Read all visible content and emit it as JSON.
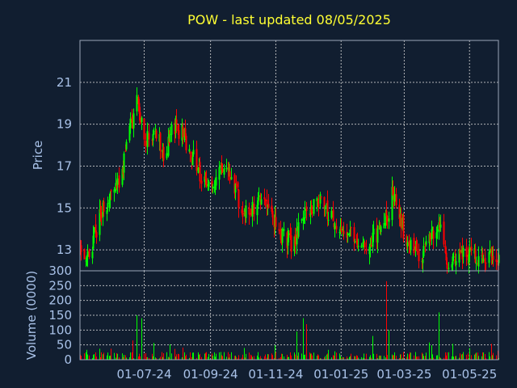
{
  "chart_data": {
    "type": "candlestick",
    "title": "POW - last updated 08/05/2025",
    "colors": {
      "up": "#00ff00",
      "down": "#ff0000",
      "background": "#111e30",
      "text": "#a9c2e8",
      "title": "#ffff33"
    },
    "grid": true,
    "price_panel": {
      "ylabel": "Price",
      "ylim": [
        12.0,
        23.0
      ],
      "yticks": [
        13,
        15,
        17,
        19,
        21
      ],
      "lowest_tick_label": "300"
    },
    "volume_panel": {
      "ylabel": "Volume (0000)",
      "ylim": [
        0,
        300
      ],
      "yticks": [
        0,
        50,
        100,
        150,
        200,
        250,
        300
      ],
      "tick_labels": [
        "0",
        "50",
        "100",
        "150",
        "200",
        "250",
        ""
      ]
    },
    "x": {
      "start": "2024-05-02",
      "end": "2025-05-28",
      "ticks": [
        {
          "date": "2024-07-01",
          "label": "01-07-24"
        },
        {
          "date": "2024-09-01",
          "label": "01-09-24"
        },
        {
          "date": "2024-11-01",
          "label": "01-11-24"
        },
        {
          "date": "2025-01-01",
          "label": "01-01-25"
        },
        {
          "date": "2025-03-01",
          "label": "01-03-25"
        },
        {
          "date": "2025-05-01",
          "label": "01-05-25"
        }
      ]
    },
    "close_anchors": [
      [
        "2024-05-02",
        13.2
      ],
      [
        "2024-05-10",
        12.7
      ],
      [
        "2024-05-20",
        14.6
      ],
      [
        "2024-05-30",
        15.6
      ],
      [
        "2024-06-08",
        16.2
      ],
      [
        "2024-06-16",
        18.5
      ],
      [
        "2024-06-24",
        20.0
      ],
      [
        "2024-07-02",
        18.3
      ],
      [
        "2024-07-10",
        18.6
      ],
      [
        "2024-07-20",
        17.6
      ],
      [
        "2024-07-28",
        19.0
      ],
      [
        "2024-08-05",
        18.6
      ],
      [
        "2024-08-15",
        17.5
      ],
      [
        "2024-08-25",
        16.2
      ],
      [
        "2024-09-03",
        16.4
      ],
      [
        "2024-09-12",
        16.9
      ],
      [
        "2024-09-22",
        16.2
      ],
      [
        "2024-10-02",
        14.6
      ],
      [
        "2024-10-10",
        15.0
      ],
      [
        "2024-10-20",
        15.6
      ],
      [
        "2024-10-30",
        14.3
      ],
      [
        "2024-11-08",
        13.6
      ],
      [
        "2024-11-16",
        13.2
      ],
      [
        "2024-11-22",
        14.0
      ],
      [
        "2024-12-02",
        15.0
      ],
      [
        "2024-12-12",
        15.3
      ],
      [
        "2024-12-22",
        14.7
      ],
      [
        "2025-01-02",
        13.8
      ],
      [
        "2025-01-12",
        13.9
      ],
      [
        "2025-01-22",
        13.0
      ],
      [
        "2025-01-30",
        13.6
      ],
      [
        "2025-02-10",
        14.1
      ],
      [
        "2025-02-18",
        15.8
      ],
      [
        "2025-02-26",
        14.2
      ],
      [
        "2025-03-06",
        13.3
      ],
      [
        "2025-03-16",
        12.8
      ],
      [
        "2025-03-26",
        13.6
      ],
      [
        "2025-04-03",
        14.3
      ],
      [
        "2025-04-10",
        12.4
      ],
      [
        "2025-04-18",
        12.8
      ],
      [
        "2025-04-28",
        12.9
      ],
      [
        "2025-05-10",
        12.6
      ],
      [
        "2025-05-20",
        12.8
      ],
      [
        "2025-05-28",
        12.6
      ]
    ],
    "volume_spikes": [
      [
        "2024-06-24",
        150
      ],
      [
        "2024-06-28",
        140
      ],
      [
        "2024-06-20",
        65
      ],
      [
        "2024-11-26",
        140
      ],
      [
        "2024-11-29",
        120
      ],
      [
        "2024-11-20",
        95
      ],
      [
        "2025-02-12",
        265
      ],
      [
        "2025-02-14",
        100
      ],
      [
        "2025-01-30",
        80
      ],
      [
        "2025-04-02",
        160
      ],
      [
        "2025-04-05",
        95
      ],
      [
        "2025-03-30",
        70
      ]
    ]
  }
}
